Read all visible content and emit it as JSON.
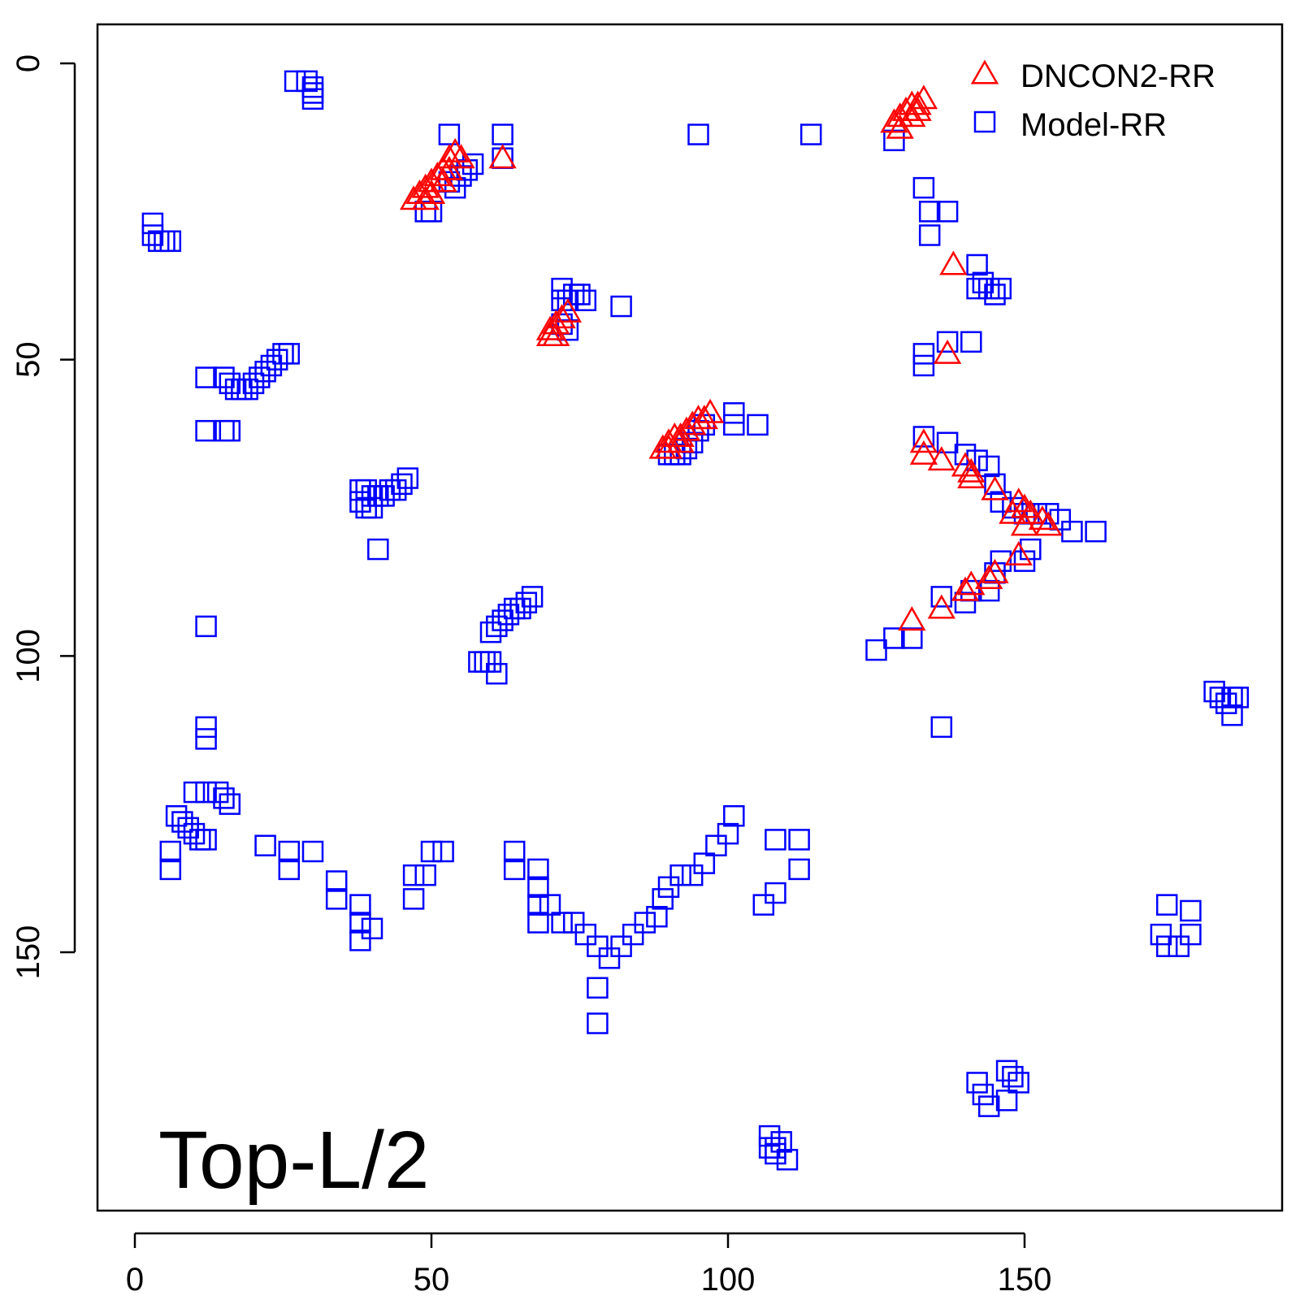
{
  "colors": {
    "model": "#0000ff",
    "dncon2": "#ff0000",
    "axis": "#000000",
    "background": "#ffffff"
  },
  "chart_data": {
    "type": "scatter",
    "title": "",
    "xlabel": "",
    "ylabel": "",
    "annotation": "Top-L/2",
    "xlim": [
      -6,
      193
    ],
    "ylim": [
      193,
      -6
    ],
    "y_axis_inverted": true,
    "x_ticks": [
      0,
      50,
      100,
      150
    ],
    "y_ticks": [
      0,
      50,
      100,
      150
    ],
    "x_tick_labels": [
      "0",
      "50",
      "100",
      "150"
    ],
    "y_tick_labels": [
      "0",
      "50",
      "100",
      "150"
    ],
    "grid": false,
    "legend": {
      "placement": "top-right",
      "entries": [
        {
          "label": "DNCON2-RR",
          "marker": "triangle",
          "color": "#ff0000"
        },
        {
          "label": "Model-RR",
          "marker": "square",
          "color": "#0000ff"
        }
      ]
    },
    "series": [
      {
        "name": "DNCON2-RR",
        "marker": "triangle",
        "color": "#ff0000",
        "points": [
          [
            47,
            23
          ],
          [
            48,
            22
          ],
          [
            49,
            21
          ],
          [
            50,
            20
          ],
          [
            51,
            19
          ],
          [
            52,
            18
          ],
          [
            53,
            16
          ],
          [
            54,
            15
          ],
          [
            55,
            16
          ],
          [
            53,
            18
          ],
          [
            52,
            20
          ],
          [
            50,
            22
          ],
          [
            49,
            23
          ],
          [
            62,
            16
          ],
          [
            70,
            45
          ],
          [
            71,
            44
          ],
          [
            72,
            43
          ],
          [
            73,
            42
          ],
          [
            71,
            46
          ],
          [
            70,
            46
          ],
          [
            89,
            65
          ],
          [
            90,
            64
          ],
          [
            91,
            63
          ],
          [
            92,
            63
          ],
          [
            93,
            62
          ],
          [
            94,
            61
          ],
          [
            95,
            60
          ],
          [
            96,
            60
          ],
          [
            97,
            59
          ],
          [
            92,
            64
          ],
          [
            90,
            65
          ],
          [
            128,
            10
          ],
          [
            129,
            9
          ],
          [
            130,
            8
          ],
          [
            131,
            7
          ],
          [
            132,
            7
          ],
          [
            133,
            6
          ],
          [
            129,
            11
          ],
          [
            131,
            9
          ],
          [
            132,
            8
          ],
          [
            138,
            34
          ],
          [
            137,
            49
          ],
          [
            133,
            64
          ],
          [
            133,
            66
          ],
          [
            136,
            67
          ],
          [
            140,
            68
          ],
          [
            141,
            69
          ],
          [
            141,
            70
          ],
          [
            145,
            72
          ],
          [
            149,
            74
          ],
          [
            150,
            75
          ],
          [
            151,
            76
          ],
          [
            153,
            77
          ],
          [
            154,
            78
          ],
          [
            150,
            78
          ],
          [
            148,
            76
          ],
          [
            149,
            83
          ],
          [
            145,
            86
          ],
          [
            144,
            87
          ],
          [
            141,
            88
          ],
          [
            140,
            89
          ],
          [
            136,
            92
          ],
          [
            131,
            94
          ]
        ]
      },
      {
        "name": "Model-RR",
        "marker": "square",
        "color": "#0000ff",
        "points": [
          [
            27,
            3
          ],
          [
            29,
            3
          ],
          [
            30,
            4
          ],
          [
            30,
            5
          ],
          [
            30,
            6
          ],
          [
            3,
            27
          ],
          [
            3,
            29
          ],
          [
            4,
            30
          ],
          [
            5,
            30
          ],
          [
            6,
            30
          ],
          [
            12,
            53
          ],
          [
            15,
            53
          ],
          [
            16,
            54
          ],
          [
            17,
            55
          ],
          [
            18,
            55
          ],
          [
            19,
            55
          ],
          [
            20,
            54
          ],
          [
            21,
            53
          ],
          [
            22,
            52
          ],
          [
            23,
            51
          ],
          [
            24,
            50
          ],
          [
            25,
            49
          ],
          [
            26,
            49
          ],
          [
            12,
            62
          ],
          [
            15,
            62
          ],
          [
            16,
            62
          ],
          [
            38,
            72
          ],
          [
            39,
            72
          ],
          [
            40,
            73
          ],
          [
            41,
            73
          ],
          [
            42,
            73
          ],
          [
            43,
            72
          ],
          [
            44,
            72
          ],
          [
            45,
            71
          ],
          [
            46,
            70
          ],
          [
            38,
            74
          ],
          [
            39,
            75
          ],
          [
            40,
            75
          ],
          [
            41,
            82
          ],
          [
            12,
            95
          ],
          [
            12,
            114
          ],
          [
            53,
            12
          ],
          [
            53,
            20
          ],
          [
            54,
            21
          ],
          [
            55,
            19
          ],
          [
            56,
            18
          ],
          [
            57,
            17
          ],
          [
            50,
            25
          ],
          [
            49,
            25
          ],
          [
            62,
            12
          ],
          [
            62,
            16
          ],
          [
            72,
            38
          ],
          [
            72,
            40
          ],
          [
            73,
            40
          ],
          [
            74,
            39
          ],
          [
            75,
            39
          ],
          [
            76,
            40
          ],
          [
            82,
            41
          ],
          [
            72,
            44
          ],
          [
            73,
            45
          ],
          [
            58,
            101
          ],
          [
            59,
            101
          ],
          [
            60,
            101
          ],
          [
            61,
            103
          ],
          [
            60,
            96
          ],
          [
            61,
            95
          ],
          [
            62,
            94
          ],
          [
            63,
            93
          ],
          [
            64,
            92
          ],
          [
            65,
            92
          ],
          [
            66,
            91
          ],
          [
            67,
            90
          ],
          [
            90,
            66
          ],
          [
            91,
            66
          ],
          [
            92,
            66
          ],
          [
            93,
            65
          ],
          [
            94,
            64
          ],
          [
            95,
            62
          ],
          [
            96,
            61
          ],
          [
            101,
            59
          ],
          [
            101,
            61
          ],
          [
            105,
            61
          ],
          [
            95,
            12
          ],
          [
            114,
            12
          ],
          [
            128,
            13
          ],
          [
            133,
            21
          ],
          [
            134,
            25
          ],
          [
            134,
            29
          ],
          [
            137,
            25
          ],
          [
            142,
            34
          ],
          [
            143,
            37
          ],
          [
            144,
            38
          ],
          [
            145,
            39
          ],
          [
            146,
            38
          ],
          [
            142,
            38
          ],
          [
            141,
            47
          ],
          [
            137,
            47
          ],
          [
            133,
            49
          ],
          [
            133,
            51
          ],
          [
            133,
            63
          ],
          [
            137,
            64
          ],
          [
            140,
            66
          ],
          [
            142,
            67
          ],
          [
            144,
            68
          ],
          [
            145,
            71
          ],
          [
            146,
            74
          ],
          [
            148,
            75
          ],
          [
            150,
            76
          ],
          [
            152,
            76
          ],
          [
            154,
            76
          ],
          [
            156,
            77
          ],
          [
            158,
            79
          ],
          [
            162,
            79
          ],
          [
            151,
            82
          ],
          [
            150,
            84
          ],
          [
            146,
            84
          ],
          [
            145,
            86
          ],
          [
            144,
            89
          ],
          [
            141,
            89
          ],
          [
            140,
            91
          ],
          [
            136,
            90
          ],
          [
            131,
            97
          ],
          [
            128,
            97
          ],
          [
            125,
            99
          ],
          [
            136,
            112
          ],
          [
            108,
            131
          ],
          [
            112,
            131
          ],
          [
            12,
            112
          ],
          [
            10,
            123
          ],
          [
            12,
            123
          ],
          [
            14,
            123
          ],
          [
            15,
            124
          ],
          [
            16,
            125
          ],
          [
            7,
            127
          ],
          [
            8,
            128
          ],
          [
            9,
            129
          ],
          [
            10,
            130
          ],
          [
            11,
            131
          ],
          [
            12,
            131
          ],
          [
            6,
            133
          ],
          [
            6,
            136
          ],
          [
            22,
            132
          ],
          [
            26,
            133
          ],
          [
            26,
            136
          ],
          [
            30,
            133
          ],
          [
            34,
            138
          ],
          [
            34,
            141
          ],
          [
            38,
            142
          ],
          [
            38,
            145
          ],
          [
            38,
            148
          ],
          [
            40,
            146
          ],
          [
            47,
            137
          ],
          [
            47,
            141
          ],
          [
            49,
            137
          ],
          [
            50,
            133
          ],
          [
            52,
            133
          ],
          [
            64,
            133
          ],
          [
            64,
            136
          ],
          [
            68,
            136
          ],
          [
            68,
            139
          ],
          [
            68,
            142
          ],
          [
            68,
            145
          ],
          [
            70,
            142
          ],
          [
            72,
            145
          ],
          [
            74,
            145
          ],
          [
            76,
            147
          ],
          [
            78,
            149
          ],
          [
            80,
            151
          ],
          [
            78,
            156
          ],
          [
            78,
            162
          ],
          [
            82,
            149
          ],
          [
            84,
            147
          ],
          [
            86,
            145
          ],
          [
            88,
            144
          ],
          [
            89,
            141
          ],
          [
            90,
            139
          ],
          [
            92,
            137
          ],
          [
            94,
            137
          ],
          [
            96,
            135
          ],
          [
            98,
            132
          ],
          [
            100,
            130
          ],
          [
            101,
            127
          ],
          [
            106,
            142
          ],
          [
            108,
            140
          ],
          [
            112,
            136
          ],
          [
            174,
            142
          ],
          [
            178,
            143
          ],
          [
            178,
            147
          ],
          [
            173,
            147
          ],
          [
            174,
            149
          ],
          [
            176,
            149
          ],
          [
            182,
            106
          ],
          [
            183,
            107
          ],
          [
            184,
            108
          ],
          [
            185,
            107
          ],
          [
            186,
            107
          ],
          [
            185,
            110
          ],
          [
            142,
            172
          ],
          [
            143,
            174
          ],
          [
            144,
            176
          ],
          [
            147,
            170
          ],
          [
            148,
            171
          ],
          [
            149,
            172
          ],
          [
            147,
            175
          ],
          [
            107,
            183
          ],
          [
            108,
            184
          ],
          [
            109,
            182
          ],
          [
            110,
            185
          ],
          [
            107,
            181
          ],
          [
            108,
            183
          ]
        ]
      }
    ]
  }
}
